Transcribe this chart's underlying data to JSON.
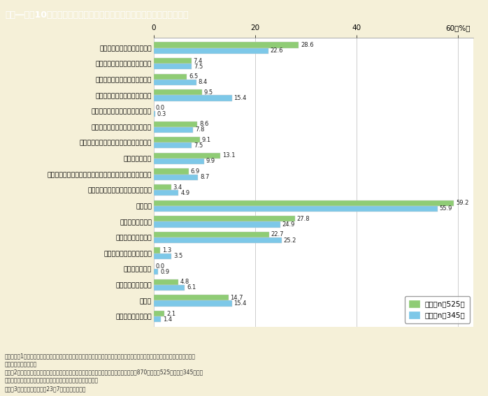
{
  "title": "第１―特－10図　地震の揺れがおさまった後の行動（男女別，複数回答）",
  "categories": [
    "特に何もしなかった",
    "その他",
    "避難誘導をはじめた",
    "船を沖に出した",
    "海や港の様子を見に行った",
    "外に出て様子を見た",
    "避難の準備をした",
    "避難した",
    "避難するかどうか家族と話し合った",
    "自宅内の散らばったものや落ちてきた物の後片付けをした",
    "火の始末をした",
    "自治体の防災行政無線の放送に注意した",
    "携帯電話から情報を得ようとした",
    "パソコンから情報を得ようとした",
    "ラジオから情報を得ようとした",
    "テレビから情報を得ようとした",
    "近所の人たちの安全を確認した",
    "家族や知人の安全を確認した"
  ],
  "female": [
    2.1,
    14.7,
    4.8,
    0.0,
    1.3,
    22.7,
    27.8,
    59.2,
    3.4,
    6.9,
    13.1,
    9.1,
    8.6,
    0.0,
    9.5,
    6.5,
    7.4,
    28.6
  ],
  "male": [
    1.4,
    15.4,
    6.1,
    0.9,
    3.5,
    25.2,
    24.9,
    55.9,
    4.9,
    8.7,
    9.9,
    7.5,
    7.8,
    0.3,
    15.4,
    8.4,
    7.5,
    22.6
  ],
  "female_color": "#8fcc75",
  "male_color": "#7dc8e8",
  "female_label": "女性（n＝525）",
  "male_label": "男性（n＝345）",
  "xlim": [
    0,
    63
  ],
  "xticks": [
    0,
    20,
    40,
    60
  ],
  "background_color": "#f5f0d8",
  "plot_bg_color": "#ffffff",
  "title_bg_color": "#8b7355",
  "title_text_color": "#ffffff",
  "footnote_lines": [
    "（備考）、1．内開府・消防庁・気象庁共同調査「津波避難等に関する調査」（平成２３年）を基に，内閨府男女共同参画局による",
    "　　　　男女別集計。",
    "　　　2．調査対象は，岩手県，宮城県及び福島県の沿岸地域で県内避難をしている被災者870人（女性525人，男性345人）。",
    "　　　　調査は，仮設住宅・避難所を訪問し，面接方式で実施。",
    "　　　3．調査時期は，平成23年7月上旬から下旬。"
  ]
}
